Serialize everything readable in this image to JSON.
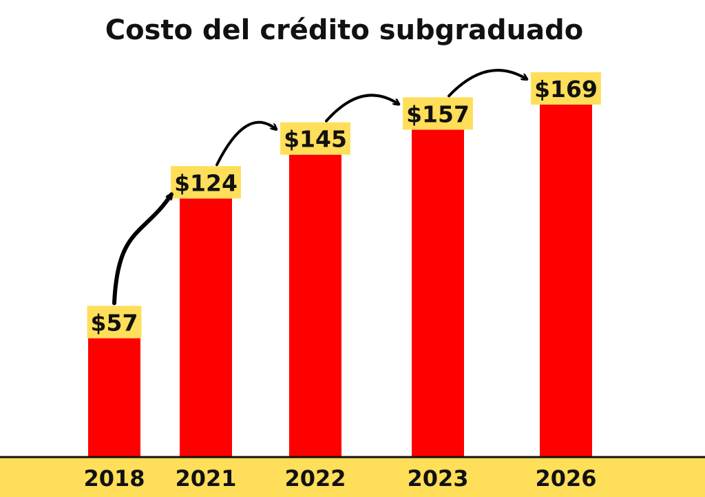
{
  "chart_data": {
    "type": "bar",
    "title": "Costo del crédito subgraduado",
    "categories": [
      "2018",
      "2021",
      "2022",
      "2023",
      "2026"
    ],
    "values": [
      57,
      124,
      145,
      157,
      169
    ],
    "value_labels": [
      "$57",
      "$124",
      "$145",
      "$157",
      "$169"
    ],
    "xlabel": "",
    "ylabel": "",
    "ylim": [
      0,
      190
    ],
    "grid": false,
    "legend": "none",
    "annotations": "curved arrows connecting each bar's value label to the next"
  },
  "colors": {
    "bar": "#ff0000",
    "label_background": "#ffde59",
    "axis_band": "#ffde59",
    "text": "#111111",
    "arrow": "#000000"
  }
}
